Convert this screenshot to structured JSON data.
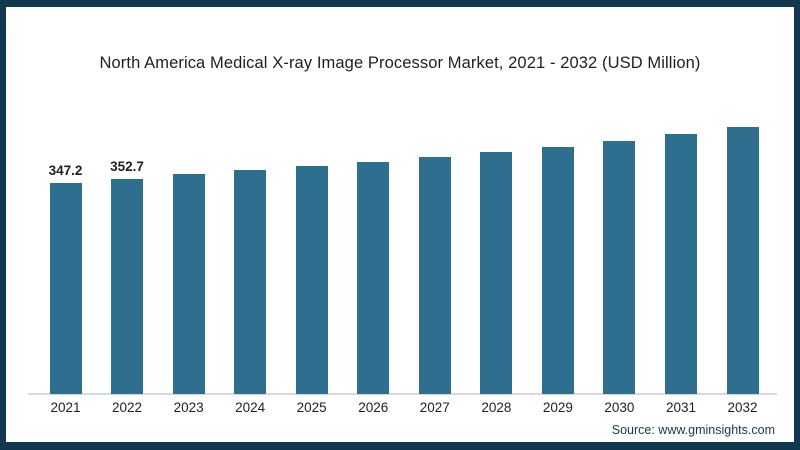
{
  "chart_data": {
    "type": "bar",
    "title": "North America Medical X-ray Image Processor Market, 2021 - 2032 (USD Million)",
    "categories": [
      "2021",
      "2022",
      "2023",
      "2024",
      "2025",
      "2026",
      "2027",
      "2028",
      "2029",
      "2030",
      "2031",
      "2032"
    ],
    "values": [
      347.2,
      352.7,
      361,
      368,
      374,
      381,
      389,
      398,
      406,
      416,
      427,
      438
    ],
    "data_labels": [
      "347.2",
      "352.7",
      "",
      "",
      "",
      "",
      "",
      "",
      "",
      "",
      "",
      ""
    ],
    "xlabel": "",
    "ylabel": "",
    "ylim": [
      0,
      460
    ],
    "grid": false,
    "legend": false,
    "bar_color": "#2e6e8e"
  },
  "footer": {
    "source": "Source: www.gminsights.com"
  },
  "colors": {
    "frame": "#12384f",
    "axis_line": "#d9d9d9",
    "title_text": "#1f1f1f",
    "tick_text": "#222222",
    "source_text": "#16394f"
  }
}
